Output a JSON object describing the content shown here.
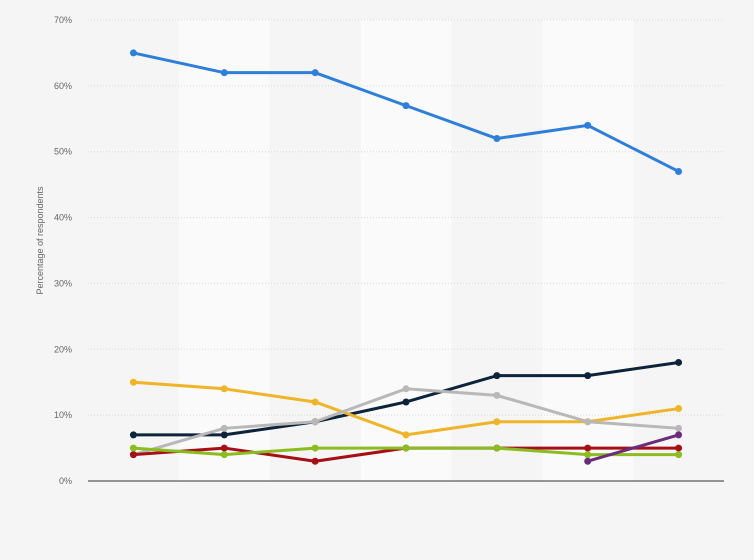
{
  "chart_data": {
    "type": "line",
    "title": "",
    "xlabel": "",
    "ylabel": "Percentage of respondents",
    "ylim": [
      0,
      70
    ],
    "yticks": [
      "0%",
      "10%",
      "20%",
      "30%",
      "40%",
      "50%",
      "60%",
      "70%"
    ],
    "grid": true,
    "legend": "none",
    "x": [
      1,
      2,
      3,
      4,
      5,
      6,
      7
    ],
    "series": [
      {
        "color": "#2f7ed8",
        "values": [
          65,
          62,
          62,
          57,
          52,
          54,
          47
        ]
      },
      {
        "color": "#0d233a",
        "values": [
          7,
          7,
          9,
          12,
          16,
          16,
          18
        ]
      },
      {
        "color": "#f0b429",
        "values": [
          15,
          14,
          12,
          7,
          9,
          9,
          11
        ]
      },
      {
        "color": "#b8b8b8",
        "values": [
          4,
          8,
          9,
          14,
          13,
          9,
          8
        ]
      },
      {
        "color": "#a50f15",
        "values": [
          4,
          5,
          3,
          5,
          5,
          5,
          5
        ]
      },
      {
        "color": "#8bbc21",
        "values": [
          5,
          4,
          5,
          5,
          5,
          4,
          4
        ]
      },
      {
        "color": "#6b2c7a",
        "values": [
          null,
          null,
          null,
          null,
          null,
          3,
          7
        ]
      }
    ]
  }
}
